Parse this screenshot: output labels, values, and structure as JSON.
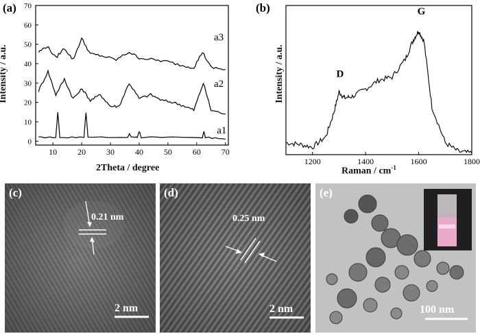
{
  "figure": {
    "panels": {
      "a": {
        "label": "(a)",
        "xlabel": "2Theta / degree",
        "ylabel": "Intensity / a.u.",
        "xticks": [
          "10",
          "20",
          "30",
          "40",
          "50",
          "60",
          "70"
        ],
        "yticks": [
          "0",
          "10",
          "20",
          "30",
          "40",
          "50",
          "60",
          "70"
        ],
        "curve_labels": [
          "a1",
          "a2",
          "a3"
        ]
      },
      "b": {
        "label": "(b)",
        "xlabel_main": "Raman / cm",
        "xlabel_sup": "-1",
        "ylabel": "Intensity / a.u.",
        "xticks": [
          "1200",
          "1400",
          "1600",
          "1800"
        ],
        "peaks": [
          "D",
          "G"
        ]
      },
      "c": {
        "label": "(c)",
        "spacing": "0.21 nm",
        "scale": "2 nm"
      },
      "d": {
        "label": "(d)",
        "spacing": "0.25 nm",
        "scale": "2 nm"
      },
      "e": {
        "label": "(e)",
        "scale": "100 nm"
      }
    }
  },
  "chart_data": [
    {
      "type": "line",
      "panel": "a",
      "xlabel": "2Theta / degree",
      "ylabel": "Intensity / a.u.",
      "xlim": [
        4,
        71
      ],
      "ylim": [
        -2,
        70
      ],
      "series": [
        {
          "name": "a1",
          "x": [
            5,
            11.0,
            11.7,
            12.4,
            20.8,
            21.5,
            22.2,
            36.0,
            36.6,
            37.2,
            39.3,
            40.0,
            40.7,
            62.0,
            62.5,
            63.0,
            70
          ],
          "y": [
            2,
            2,
            15,
            2,
            2,
            15,
            2,
            2,
            4,
            2,
            2,
            5,
            2,
            2,
            5,
            2,
            1
          ]
        },
        {
          "name": "a2",
          "x": [
            5,
            8.3,
            11,
            14,
            17,
            20.2,
            23,
            26.5,
            30,
            33,
            36.5,
            40,
            44,
            48,
            52,
            56,
            59,
            62.3,
            65,
            70
          ],
          "y": [
            26,
            36,
            24,
            32,
            22,
            27,
            21,
            24,
            18,
            18,
            30,
            22,
            24,
            21,
            20,
            18,
            16,
            30,
            16,
            14
          ]
        },
        {
          "name": "a3",
          "x": [
            5,
            8,
            11,
            14,
            17,
            20,
            23,
            27,
            32,
            36.5,
            40,
            45,
            50,
            55,
            59,
            62,
            65,
            70
          ],
          "y": [
            46,
            49,
            43,
            48,
            42,
            53,
            45,
            44,
            42,
            46,
            43,
            42,
            41,
            39,
            38,
            46,
            38,
            37
          ]
        }
      ]
    },
    {
      "type": "line",
      "panel": "b",
      "xlabel": "Raman / cm-1",
      "ylabel": "Intensity / a.u.",
      "xlim": [
        1100,
        1800
      ],
      "ylim": [
        0,
        1
      ],
      "series": [
        {
          "name": "",
          "x": [
            1100,
            1150,
            1200,
            1250,
            1280,
            1300,
            1320,
            1350,
            1400,
            1450,
            1500,
            1550,
            1580,
            1600,
            1620,
            1650,
            1700,
            1750,
            1800
          ],
          "y": [
            0.08,
            0.07,
            0.05,
            0.12,
            0.28,
            0.42,
            0.38,
            0.39,
            0.44,
            0.5,
            0.52,
            0.64,
            0.77,
            0.83,
            0.76,
            0.32,
            0.08,
            0.02,
            0.01
          ]
        }
      ],
      "annotations": [
        "D",
        "G"
      ]
    }
  ]
}
